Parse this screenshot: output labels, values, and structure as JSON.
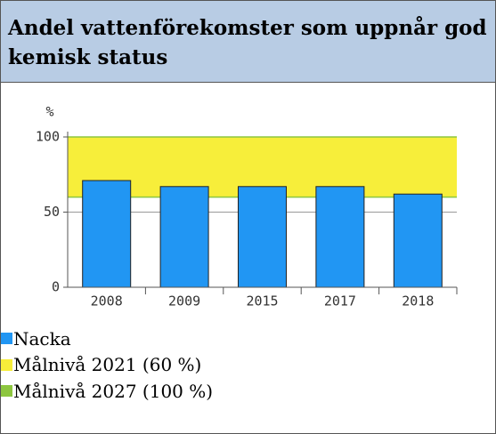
{
  "chart_data": {
    "type": "bar",
    "title": "Andel vattenförekomster som uppnår god kemisk status",
    "y_label": "%",
    "categories": [
      "2008",
      "2009",
      "2015",
      "2017",
      "2018"
    ],
    "series": [
      {
        "name": "Nacka",
        "color": "#2196f3",
        "values": [
          71,
          67,
          67,
          67,
          62
        ]
      }
    ],
    "targets": [
      {
        "name": "Målnivå 2021 (60 %)",
        "value": 60,
        "color": "#f7ee3a"
      },
      {
        "name": "Målnivå 2027 (100 %)",
        "value": 100,
        "color": "#8dc63f"
      }
    ],
    "ylim": [
      0,
      100
    ],
    "yticks": [
      0,
      50,
      100
    ],
    "grid": true
  }
}
